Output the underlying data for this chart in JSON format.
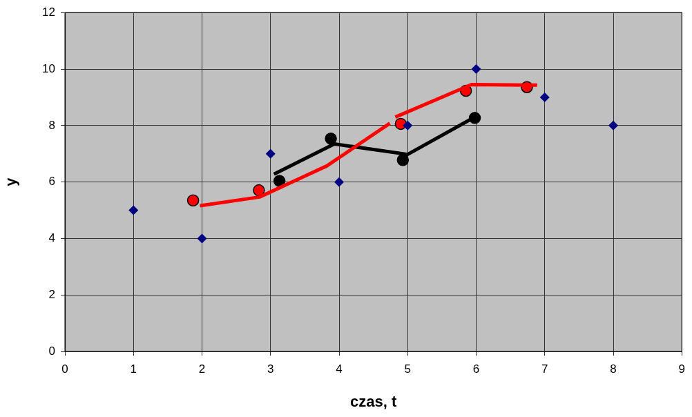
{
  "chart_data": {
    "type": "scatter",
    "xlabel": "czas, t",
    "ylabel": "y",
    "xlim": [
      0,
      9
    ],
    "xticks": [
      0,
      1,
      2,
      3,
      4,
      5,
      6,
      7,
      8,
      9
    ],
    "ylim": [
      0,
      12
    ],
    "yticks": [
      0,
      2,
      4,
      6,
      8,
      10,
      12
    ],
    "grid": true,
    "legend": false,
    "series": [
      {
        "type": "scatter",
        "marker": "diamond",
        "color": "#000080",
        "x": [
          1,
          2,
          3,
          4,
          5,
          6,
          7,
          8
        ],
        "values": [
          5,
          4,
          7,
          6,
          8,
          10,
          9,
          8
        ]
      },
      {
        "type": "line",
        "marker": "none",
        "line_style": "solid",
        "color": "#ff0000",
        "x": [
          1.97,
          2.84,
          3.82,
          4.74,
          4.78,
          4.82,
          5.93,
          6.89
        ],
        "values": [
          5.16,
          5.47,
          6.57,
          8.08,
          null,
          8.3,
          9.45,
          9.43
        ]
      },
      {
        "type": "line",
        "marker": "none",
        "line_style": "solid",
        "color": "#000000",
        "x": [
          3.05,
          3.93,
          5.0,
          6.03
        ],
        "values": [
          6.28,
          7.35,
          6.98,
          8.37
        ]
      },
      {
        "type": "scatter",
        "marker": "circle",
        "color": "#ff0000",
        "x": [
          1.87,
          2.83,
          4.9,
          5.85,
          6.74
        ],
        "values": [
          5.35,
          5.71,
          8.06,
          9.23,
          9.36
        ]
      },
      {
        "type": "scatter",
        "marker": "circle",
        "color": "#000000",
        "x": [
          3.13,
          3.88,
          4.93,
          5.98
        ],
        "values": [
          6.04,
          7.54,
          6.78,
          8.27
        ]
      }
    ]
  }
}
